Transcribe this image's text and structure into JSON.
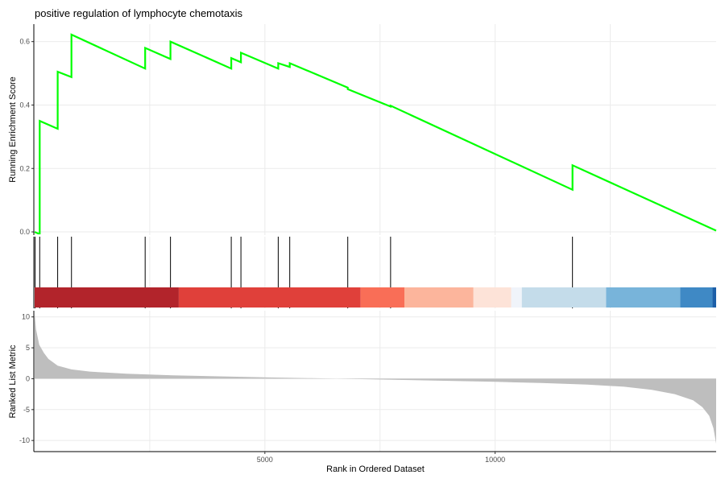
{
  "chart_data": {
    "type": "line",
    "title": "positive regulation of lymphocyte chemotaxis",
    "xlabel": "Rank in Ordered Dataset",
    "x_ticks": [
      5000,
      10000
    ],
    "xlim": [
      0,
      14800
    ],
    "grid": true,
    "panels": {
      "enrichment": {
        "ylabel": "Running Enrichment Score",
        "y_ticks": [
          0.0,
          0.2,
          0.4,
          0.6
        ],
        "ylim": [
          -0.01,
          0.655
        ],
        "line_color": "#00ff00",
        "x": [
          0,
          75,
          110,
          110,
          500,
          500,
          800,
          800,
          2400,
          2400,
          2950,
          2950,
          4270,
          4270,
          4480,
          4480,
          5290,
          5290,
          5540,
          5540,
          6800,
          6800,
          7730,
          7730,
          11680,
          11680,
          14800
        ],
        "y": [
          0.0,
          -0.005,
          -0.005,
          0.35,
          0.325,
          0.505,
          0.488,
          0.622,
          0.515,
          0.58,
          0.545,
          0.6,
          0.515,
          0.548,
          0.535,
          0.565,
          0.515,
          0.532,
          0.52,
          0.532,
          0.455,
          0.45,
          0.395,
          0.398,
          0.133,
          0.21,
          0.004
        ]
      },
      "hits": {
        "positions": [
          0,
          110,
          500,
          800,
          2400,
          2950,
          4270,
          4480,
          5290,
          5540,
          6800,
          7730,
          11680
        ]
      },
      "color_band": {
        "segments": [
          {
            "start": 0,
            "end": 3130,
            "color": "#b2242b"
          },
          {
            "start": 3130,
            "end": 7080,
            "color": "#e0403a"
          },
          {
            "start": 7080,
            "end": 8030,
            "color": "#f96e57"
          },
          {
            "start": 8030,
            "end": 9530,
            "color": "#fcb59c"
          },
          {
            "start": 9530,
            "end": 10350,
            "color": "#fde3d8"
          },
          {
            "start": 10350,
            "end": 10580,
            "color": "#f0f4fa"
          },
          {
            "start": 10580,
            "end": 12410,
            "color": "#c4dcea"
          },
          {
            "start": 12410,
            "end": 14020,
            "color": "#78b4da"
          },
          {
            "start": 14020,
            "end": 14720,
            "color": "#3f89c5"
          },
          {
            "start": 14720,
            "end": 14800,
            "color": "#1c5fa8"
          }
        ]
      },
      "ranked": {
        "ylabel": "Ranked List Metric",
        "y_ticks": [
          10,
          5,
          0,
          -5,
          -10
        ],
        "ylim": [
          -11.8,
          11.0
        ],
        "fill_color": "#bebebe",
        "x": [
          0,
          30,
          100,
          200,
          300,
          500,
          800,
          1200,
          2000,
          3000,
          4000,
          5000,
          6000,
          7000,
          8000,
          9000,
          10000,
          11000,
          12000,
          12800,
          13400,
          13900,
          14300,
          14500,
          14650,
          14740,
          14800
        ],
        "y": [
          10.5,
          8.0,
          5.5,
          4.2,
          3.2,
          2.1,
          1.5,
          1.15,
          0.8,
          0.55,
          0.38,
          0.22,
          0.08,
          -0.06,
          -0.2,
          -0.35,
          -0.5,
          -0.7,
          -0.95,
          -1.3,
          -1.8,
          -2.5,
          -3.5,
          -4.6,
          -6.0,
          -8.0,
          -10.5
        ]
      }
    }
  }
}
